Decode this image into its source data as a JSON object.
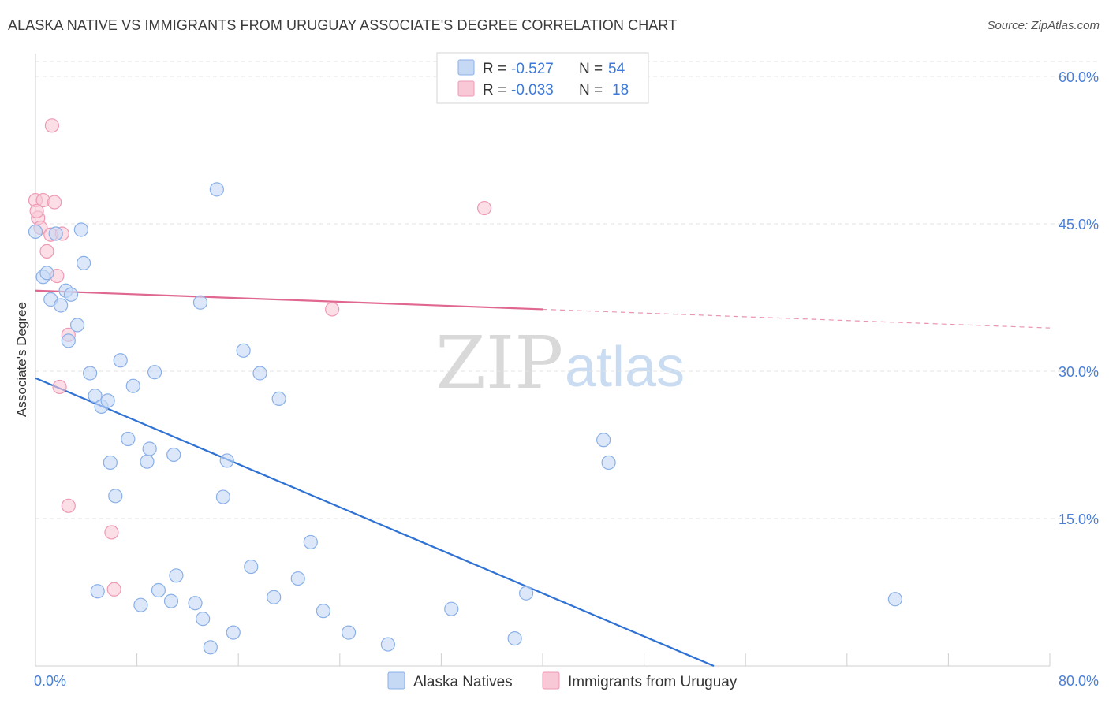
{
  "title": "ALASKA NATIVE VS IMMIGRANTS FROM URUGUAY ASSOCIATE'S DEGREE CORRELATION CHART",
  "source": "Source: ZipAtlas.com",
  "watermark": {
    "zip": "ZIP",
    "atlas": "atlas"
  },
  "colors": {
    "blue_fill": "#c5d9f5",
    "blue_stroke": "#8ab0e8",
    "blue_line": "#2f72d4",
    "pink_fill": "#f8c8d6",
    "pink_stroke": "#ee9ab4",
    "pink_line": "#e0678f",
    "grid": "#e3e3e3",
    "tick_text": "#4a7fd6"
  },
  "legend": {
    "rows": [
      {
        "r_label": "R = ",
        "r_value": "-0.527",
        "n_label": "N = ",
        "n_value": "54"
      },
      {
        "r_label": "R = ",
        "r_value": "-0.033",
        "n_label": "N = ",
        "n_value": "18"
      }
    ]
  },
  "chart_data": {
    "type": "scatter",
    "title": "ALASKA NATIVE VS IMMIGRANTS FROM URUGUAY ASSOCIATE'S DEGREE CORRELATION CHART",
    "xlabel": "",
    "ylabel": "Associate's Degree",
    "xlim": [
      0,
      80
    ],
    "ylim": [
      0,
      60
    ],
    "x_tick_labels": [
      "0.0%",
      "80.0%"
    ],
    "y_ticks": [
      15,
      30,
      45,
      60
    ],
    "y_tick_labels": [
      "15.0%",
      "30.0%",
      "45.0%",
      "60.0%"
    ],
    "grid": true,
    "series": [
      {
        "name": "Alaska Natives",
        "r": -0.527,
        "n": 54,
        "trend": {
          "x0": 0,
          "y0": 29.3,
          "x1": 53.5,
          "y1": 0,
          "dashed_to": null
        },
        "points": [
          [
            0,
            44.2
          ],
          [
            0.6,
            39.6
          ],
          [
            0.9,
            40.0
          ],
          [
            1.2,
            37.3
          ],
          [
            1.6,
            44.0
          ],
          [
            2.0,
            36.7
          ],
          [
            2.4,
            38.2
          ],
          [
            2.6,
            33.1
          ],
          [
            2.8,
            37.8
          ],
          [
            3.3,
            34.7
          ],
          [
            3.6,
            44.4
          ],
          [
            3.8,
            41.0
          ],
          [
            4.3,
            29.8
          ],
          [
            4.7,
            27.5
          ],
          [
            4.9,
            7.6
          ],
          [
            5.2,
            26.4
          ],
          [
            5.7,
            27.0
          ],
          [
            5.9,
            20.7
          ],
          [
            6.3,
            17.3
          ],
          [
            6.7,
            31.1
          ],
          [
            7.3,
            23.1
          ],
          [
            7.7,
            28.5
          ],
          [
            8.3,
            6.2
          ],
          [
            8.8,
            20.8
          ],
          [
            9.0,
            22.1
          ],
          [
            9.4,
            29.9
          ],
          [
            9.7,
            7.7
          ],
          [
            10.7,
            6.6
          ],
          [
            10.9,
            21.5
          ],
          [
            11.1,
            9.2
          ],
          [
            12.6,
            6.4
          ],
          [
            13.0,
            37.0
          ],
          [
            13.2,
            4.8
          ],
          [
            13.8,
            1.9
          ],
          [
            14.3,
            48.5
          ],
          [
            14.8,
            17.2
          ],
          [
            15.1,
            20.9
          ],
          [
            15.6,
            3.4
          ],
          [
            16.4,
            32.1
          ],
          [
            17.0,
            10.1
          ],
          [
            17.7,
            29.8
          ],
          [
            18.8,
            7.0
          ],
          [
            19.2,
            27.2
          ],
          [
            20.7,
            8.9
          ],
          [
            21.7,
            12.6
          ],
          [
            22.7,
            5.6
          ],
          [
            24.7,
            3.4
          ],
          [
            27.8,
            2.2
          ],
          [
            32.8,
            5.8
          ],
          [
            37.8,
            2.8
          ],
          [
            38.7,
            7.4
          ],
          [
            44.8,
            23.0
          ],
          [
            45.2,
            20.7
          ],
          [
            67.8,
            6.8
          ]
        ]
      },
      {
        "name": "Immigrants from Uruguay",
        "r": -0.033,
        "n": 18,
        "trend": {
          "x0": 0,
          "y0": 38.2,
          "x1": 40,
          "y1": 36.3,
          "dashed_to": {
            "x": 80,
            "y": 34.4
          }
        },
        "points": [
          [
            0,
            47.4
          ],
          [
            0.2,
            45.6
          ],
          [
            0.4,
            44.6
          ],
          [
            0.6,
            47.4
          ],
          [
            0.9,
            42.2
          ],
          [
            1.2,
            43.9
          ],
          [
            1.3,
            55.0
          ],
          [
            1.5,
            47.2
          ],
          [
            1.7,
            39.7
          ],
          [
            1.9,
            28.4
          ],
          [
            2.1,
            44.0
          ],
          [
            2.6,
            33.7
          ],
          [
            2.6,
            16.3
          ],
          [
            6.0,
            13.6
          ],
          [
            6.2,
            7.8
          ],
          [
            23.4,
            36.3
          ],
          [
            35.4,
            46.6
          ],
          [
            0.1,
            46.3
          ]
        ]
      }
    ]
  }
}
